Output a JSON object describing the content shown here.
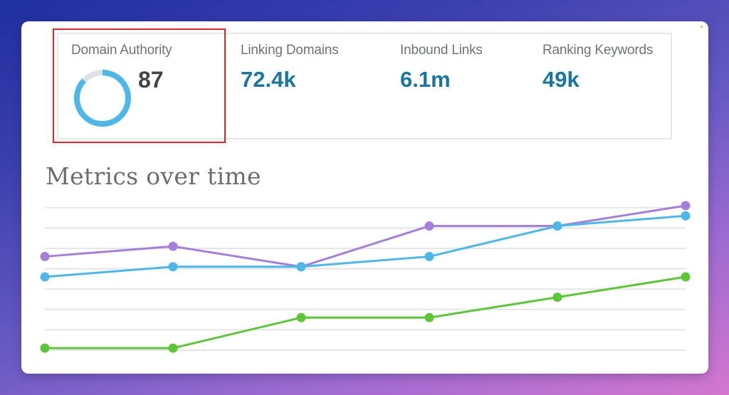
{
  "stats": {
    "domain_authority": {
      "label": "Domain Authority",
      "value": "87",
      "percent": 87
    },
    "linking_domains": {
      "label": "Linking Domains",
      "value": "72.4k"
    },
    "inbound_links": {
      "label": "Inbound Links",
      "value": "6.1m"
    },
    "ranking_keywords": {
      "label": "Ranking Keywords",
      "value": "49k"
    }
  },
  "colors": {
    "accent_value": "#1a76a0",
    "donut_fill": "#4db8e8",
    "donut_track": "#dfe1e3",
    "highlight": "#d8262e",
    "gridline": "#e3e5e7"
  },
  "chart": {
    "title": "Metrics over time"
  },
  "chart_data": {
    "type": "line",
    "title": "Metrics over time",
    "xlabel": "",
    "ylabel": "",
    "x": [
      1,
      2,
      3,
      4,
      5,
      6
    ],
    "ylim": [
      0,
      7
    ],
    "grid": true,
    "gridlines": 8,
    "legend": "none",
    "series": [
      {
        "name": "purple",
        "color": "#a47fdb",
        "values": [
          4.6,
          5.1,
          4.1,
          6.1,
          6.1,
          7.1
        ]
      },
      {
        "name": "blue",
        "color": "#4db8e8",
        "values": [
          3.6,
          4.1,
          4.1,
          4.6,
          6.1,
          6.6
        ]
      },
      {
        "name": "green",
        "color": "#5cc639",
        "values": [
          0.1,
          0.1,
          1.6,
          1.6,
          2.6,
          3.6
        ]
      }
    ]
  }
}
